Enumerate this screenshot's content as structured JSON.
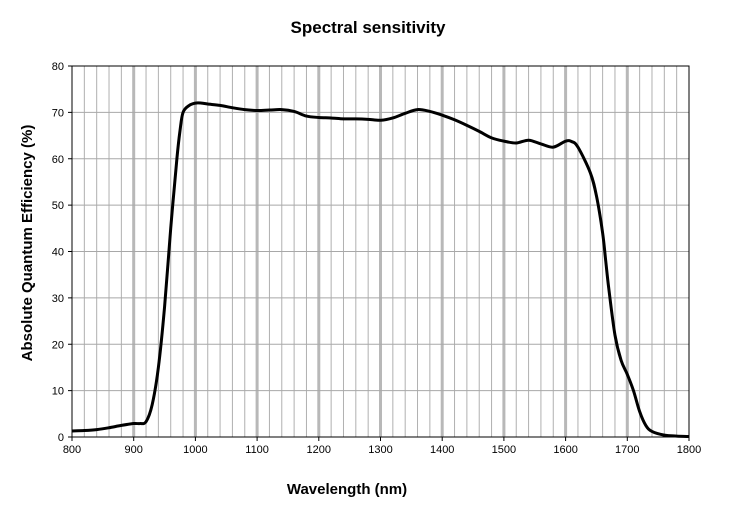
{
  "chart_data": {
    "type": "line",
    "title": "Spectral sensitivity",
    "xlabel": "Wavelength (nm)",
    "ylabel": "Absolute Quantum Efficiency (%)",
    "xlim": [
      800,
      1800
    ],
    "ylim": [
      0,
      80
    ],
    "x_major_ticks": [
      800,
      900,
      1000,
      1100,
      1200,
      1300,
      1400,
      1500,
      1600,
      1700,
      1800
    ],
    "y_major_ticks": [
      0,
      10,
      20,
      30,
      40,
      50,
      60,
      70,
      80
    ],
    "x_minor_step": 20,
    "grid": true,
    "legend": "none",
    "series": [
      {
        "color": "#000000",
        "x": [
          800,
          820,
          840,
          860,
          880,
          900,
          910,
          920,
          930,
          940,
          950,
          960,
          970,
          975,
          980,
          990,
          1000,
          1010,
          1020,
          1040,
          1060,
          1080,
          1100,
          1120,
          1140,
          1160,
          1180,
          1200,
          1220,
          1240,
          1260,
          1280,
          1300,
          1320,
          1340,
          1360,
          1380,
          1400,
          1420,
          1440,
          1460,
          1480,
          1500,
          1520,
          1540,
          1560,
          1580,
          1600,
          1610,
          1620,
          1640,
          1650,
          1660,
          1665,
          1670,
          1680,
          1690,
          1700,
          1710,
          1720,
          1730,
          1740,
          1760,
          1780,
          1800
        ],
        "y": [
          1.3,
          1.4,
          1.6,
          2.0,
          2.5,
          2.9,
          2.9,
          3.3,
          7.0,
          15.0,
          28.0,
          45.0,
          60.0,
          66.0,
          70.0,
          71.5,
          72.0,
          72.0,
          71.8,
          71.5,
          71.0,
          70.6,
          70.4,
          70.5,
          70.6,
          70.2,
          69.2,
          68.9,
          68.8,
          68.6,
          68.6,
          68.5,
          68.3,
          68.8,
          69.8,
          70.6,
          70.2,
          69.4,
          68.4,
          67.2,
          65.9,
          64.5,
          63.8,
          63.4,
          64.0,
          63.2,
          62.5,
          63.8,
          63.7,
          62.5,
          57.0,
          52.0,
          44.0,
          38.0,
          32.0,
          22.0,
          16.5,
          13.5,
          10.0,
          5.5,
          2.5,
          1.2,
          0.4,
          0.2,
          0.1
        ]
      }
    ]
  }
}
